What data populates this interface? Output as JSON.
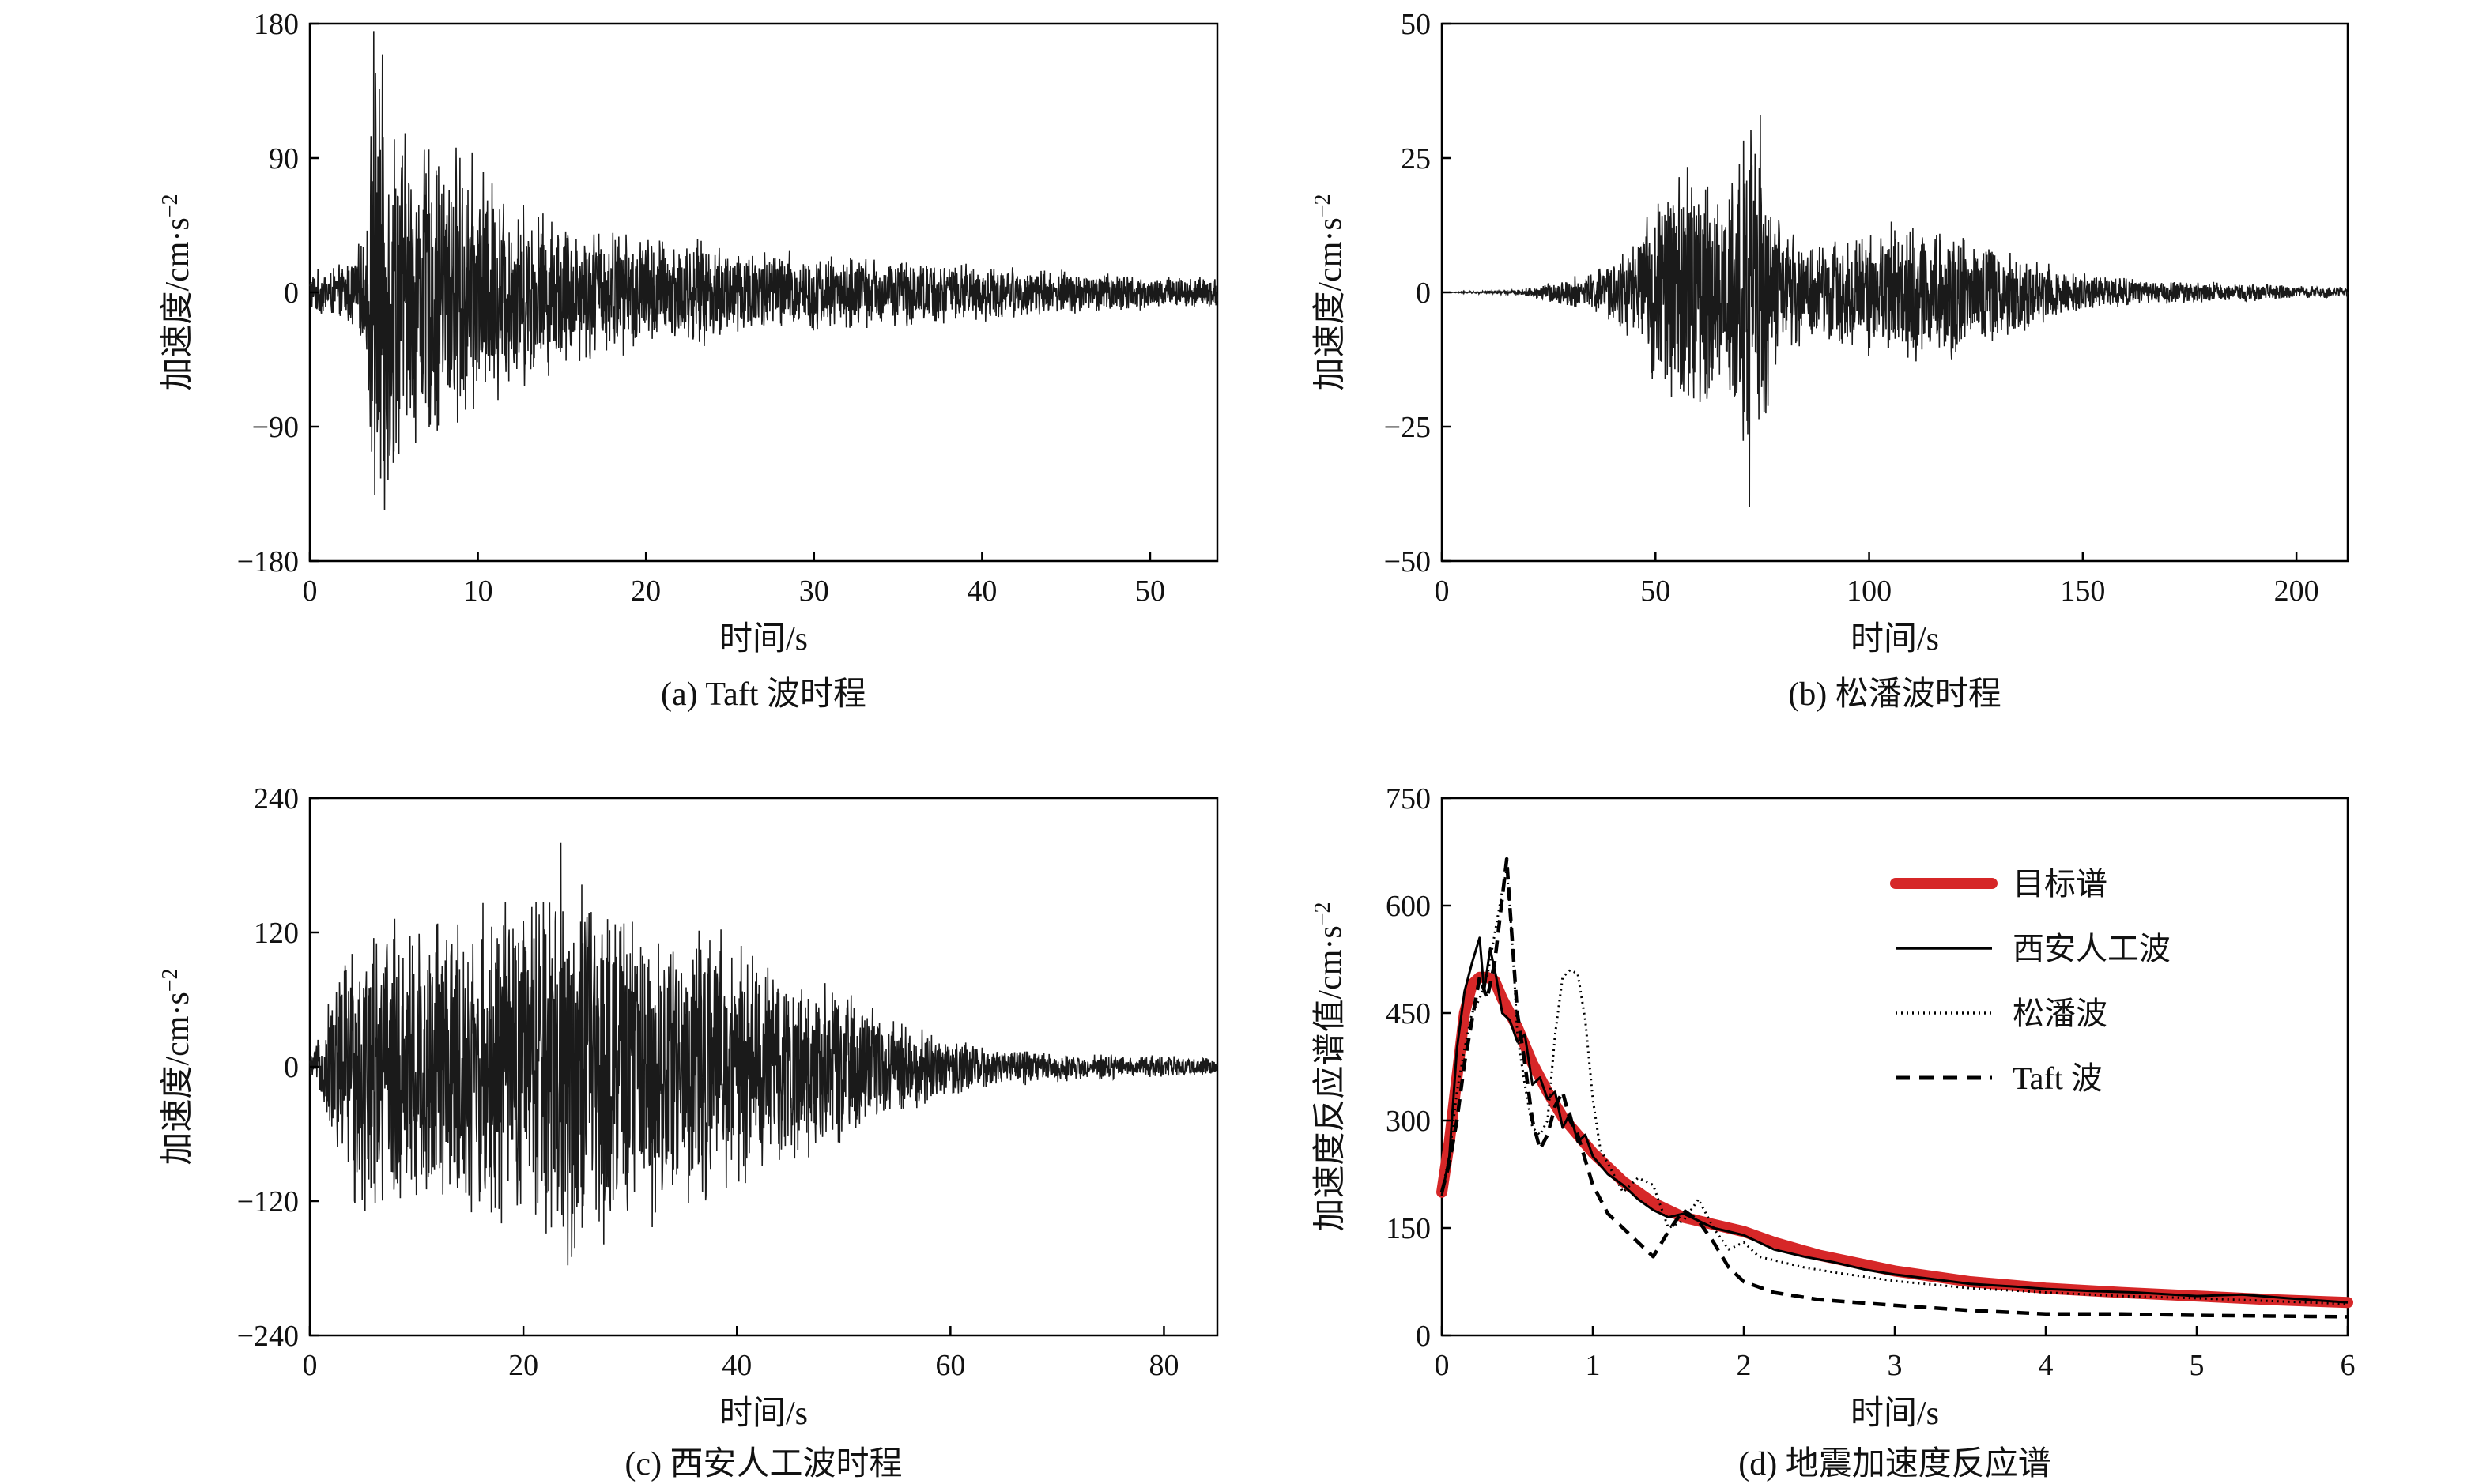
{
  "chart_data": [
    {
      "id": "a",
      "type": "line",
      "caption": "(a) Taft 波时程",
      "xlabel": "时间/s",
      "ylabel": "加速度/cm·s",
      "ylabel_sup": "−2",
      "xlim": [
        0,
        54
      ],
      "ylim": [
        -180,
        180
      ],
      "xticks": [
        0,
        10,
        20,
        30,
        40,
        50
      ],
      "yticks": [
        -180,
        -90,
        0,
        90,
        180
      ],
      "series": [
        {
          "style": "wave",
          "duration": 54,
          "peak_time": 3.8,
          "envelope_t": [
            0,
            2,
            3.3,
            3.8,
            6,
            9,
            12,
            16,
            20,
            25,
            30,
            36,
            42,
            48,
            54
          ],
          "envelope_amp": [
            15,
            20,
            40,
            175,
            110,
            105,
            70,
            50,
            42,
            35,
            28,
            24,
            18,
            14,
            10
          ],
          "max": 175,
          "min": -146
        }
      ]
    },
    {
      "id": "b",
      "type": "line",
      "caption": "(b) 松潘波时程",
      "xlabel": "时间/s",
      "ylabel": "加速度/cm·s",
      "ylabel_sup": "−2",
      "xlim": [
        0,
        212
      ],
      "ylim": [
        -50,
        50
      ],
      "xticks": [
        0,
        50,
        100,
        150,
        200
      ],
      "yticks": [
        -50,
        -25,
        0,
        25,
        50
      ],
      "series": [
        {
          "style": "wave",
          "duration": 212,
          "peak_time": 72,
          "envelope_t": [
            0,
            18,
            25,
            35,
            45,
            52,
            58,
            65,
            72,
            80,
            90,
            100,
            110,
            120,
            130,
            140,
            150,
            165,
            180,
            212
          ],
          "envelope_amp": [
            0,
            0.5,
            2,
            4,
            10,
            22,
            30,
            18,
            38,
            12,
            10,
            13,
            15,
            13,
            10,
            7,
            4,
            2.5,
            2,
            1
          ],
          "max": 33,
          "min": -40
        }
      ]
    },
    {
      "id": "c",
      "type": "line",
      "caption": "(c) 西安人工波时程",
      "xlabel": "时间/s",
      "ylabel": "加速度/cm·s",
      "ylabel_sup": "−2",
      "xlim": [
        0,
        85
      ],
      "ylim": [
        -240,
        240
      ],
      "xticks": [
        0,
        20,
        40,
        60,
        80
      ],
      "yticks": [
        -240,
        -120,
        0,
        120,
        240
      ],
      "series": [
        {
          "style": "wave",
          "duration": 85,
          "peak_time": 23.5,
          "envelope_t": [
            0,
            1,
            3,
            5,
            10,
            20,
            23.5,
            30,
            38,
            45,
            50,
            55,
            60,
            65,
            75,
            85
          ],
          "envelope_amp": [
            10,
            30,
            120,
            140,
            150,
            155,
            200,
            150,
            130,
            95,
            70,
            45,
            28,
            18,
            12,
            8
          ],
          "max": 200,
          "min": -170
        }
      ]
    },
    {
      "id": "d",
      "type": "line",
      "caption": "(d) 地震加速度反应谱",
      "xlabel": "时间/s",
      "ylabel": "加速度反应谱值/cm·s",
      "ylabel_sup": "−2",
      "xlim": [
        0,
        6
      ],
      "ylim": [
        0,
        750
      ],
      "xticks": [
        0,
        1,
        2,
        3,
        4,
        5,
        6
      ],
      "yticks": [
        0,
        150,
        300,
        450,
        600,
        750
      ],
      "legend_position": "top-right",
      "series": [
        {
          "name": "目标谱",
          "style": "solid-thick",
          "color": "#d62728",
          "x": [
            0,
            0.05,
            0.1,
            0.15,
            0.2,
            0.25,
            0.3,
            0.35,
            0.4,
            0.5,
            0.6,
            0.7,
            0.8,
            0.9,
            1.0,
            1.2,
            1.4,
            1.6,
            1.8,
            2.0,
            2.2,
            2.5,
            3.0,
            3.5,
            4.0,
            4.5,
            5.0,
            5.5,
            6.0
          ],
          "y": [
            200,
            270,
            360,
            450,
            490,
            500,
            500,
            495,
            470,
            430,
            380,
            340,
            305,
            280,
            255,
            215,
            185,
            165,
            155,
            145,
            130,
            112,
            90,
            75,
            66,
            60,
            55,
            50,
            46
          ]
        },
        {
          "name": "西安人工波",
          "style": "solid",
          "color": "#000000",
          "x": [
            0,
            0.05,
            0.1,
            0.15,
            0.2,
            0.25,
            0.28,
            0.32,
            0.36,
            0.4,
            0.45,
            0.5,
            0.55,
            0.6,
            0.65,
            0.7,
            0.75,
            0.8,
            0.85,
            0.9,
            0.95,
            1.0,
            1.1,
            1.2,
            1.3,
            1.4,
            1.5,
            1.6,
            1.7,
            1.8,
            1.9,
            2.0,
            2.1,
            2.2,
            2.4,
            2.6,
            2.8,
            3.0,
            3.2,
            3.5,
            3.8,
            4.0,
            4.3,
            4.6,
            5.0,
            5.3,
            5.6,
            6.0
          ],
          "y": [
            195,
            250,
            400,
            480,
            520,
            555,
            480,
            540,
            500,
            450,
            440,
            410,
            420,
            350,
            360,
            330,
            340,
            290,
            310,
            270,
            280,
            250,
            225,
            210,
            190,
            175,
            165,
            170,
            160,
            150,
            145,
            140,
            130,
            120,
            110,
            102,
            92,
            85,
            80,
            72,
            68,
            65,
            62,
            60,
            55,
            57,
            52,
            46
          ]
        },
        {
          "name": "松潘波",
          "style": "dotted",
          "color": "#000000",
          "x": [
            0,
            0.05,
            0.1,
            0.15,
            0.2,
            0.25,
            0.3,
            0.35,
            0.4,
            0.43,
            0.45,
            0.48,
            0.5,
            0.55,
            0.6,
            0.65,
            0.7,
            0.75,
            0.8,
            0.85,
            0.9,
            0.95,
            1.0,
            1.05,
            1.1,
            1.2,
            1.3,
            1.4,
            1.5,
            1.6,
            1.7,
            1.8,
            1.9,
            2.0,
            2.1,
            2.2,
            2.4,
            2.6,
            2.8,
            3.0,
            3.5,
            4.0,
            4.5,
            5.0,
            5.5,
            6.0
          ],
          "y": [
            200,
            250,
            340,
            400,
            450,
            470,
            500,
            560,
            620,
            650,
            600,
            500,
            420,
            350,
            290,
            280,
            300,
            420,
            500,
            510,
            505,
            440,
            330,
            260,
            240,
            200,
            220,
            210,
            150,
            160,
            190,
            150,
            120,
            130,
            110,
            105,
            95,
            88,
            82,
            76,
            66,
            60,
            55,
            52,
            48,
            44
          ]
        },
        {
          "name": "Taft 波",
          "style": "dashed",
          "color": "#000000",
          "x": [
            0,
            0.05,
            0.1,
            0.15,
            0.2,
            0.25,
            0.3,
            0.35,
            0.4,
            0.43,
            0.45,
            0.5,
            0.55,
            0.6,
            0.65,
            0.7,
            0.75,
            0.8,
            0.85,
            0.9,
            1.0,
            1.1,
            1.2,
            1.3,
            1.4,
            1.5,
            1.6,
            1.7,
            1.8,
            1.9,
            2.0,
            2.2,
            2.5,
            3.0,
            3.5,
            4.0,
            4.5,
            5.0,
            5.5,
            6.0
          ],
          "y": [
            200,
            240,
            300,
            380,
            440,
            500,
            470,
            520,
            610,
            665,
            600,
            450,
            380,
            300,
            260,
            280,
            320,
            340,
            300,
            280,
            210,
            170,
            150,
            130,
            110,
            145,
            175,
            160,
            130,
            95,
            75,
            60,
            50,
            42,
            35,
            30,
            30,
            28,
            27,
            26
          ]
        }
      ]
    }
  ]
}
